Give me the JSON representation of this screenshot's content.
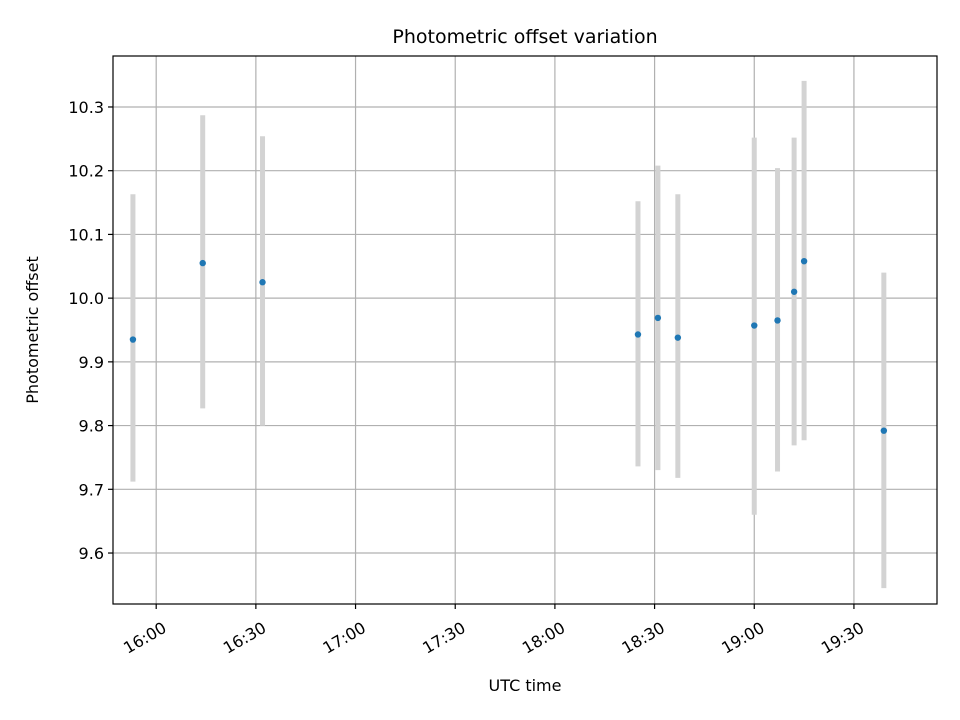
{
  "chart_data": {
    "type": "scatter",
    "title": "Photometric offset variation",
    "xlabel": "UTC time",
    "ylabel": "Photometric offset",
    "x_ticks": [
      "16:00",
      "16:30",
      "17:00",
      "17:30",
      "18:00",
      "18:30",
      "19:00",
      "19:30"
    ],
    "y_ticks": [
      "9.6",
      "9.7",
      "9.8",
      "9.9",
      "10.0",
      "10.1",
      "10.2",
      "10.3"
    ],
    "xlim": [
      "15:47",
      "19:55"
    ],
    "ylim": [
      9.52,
      10.38
    ],
    "grid": true,
    "colors": {
      "point": "#1f77b4",
      "errorbar": "#d3d3d3",
      "grid": "#b0b0b0"
    },
    "series": [
      {
        "points": [
          {
            "x": "15:53",
            "y": 9.935,
            "ylow": 9.712,
            "yhigh": 10.163
          },
          {
            "x": "16:14",
            "y": 10.055,
            "ylow": 9.827,
            "yhigh": 10.287
          },
          {
            "x": "16:32",
            "y": 10.025,
            "ylow": 9.8,
            "yhigh": 10.254
          },
          {
            "x": "18:25",
            "y": 9.943,
            "ylow": 9.736,
            "yhigh": 10.152
          },
          {
            "x": "18:31",
            "y": 9.969,
            "ylow": 9.73,
            "yhigh": 10.208
          },
          {
            "x": "18:37",
            "y": 9.938,
            "ylow": 9.718,
            "yhigh": 10.163
          },
          {
            "x": "19:00",
            "y": 9.957,
            "ylow": 9.66,
            "yhigh": 10.252
          },
          {
            "x": "19:07",
            "y": 9.965,
            "ylow": 9.728,
            "yhigh": 10.204
          },
          {
            "x": "19:12",
            "y": 10.01,
            "ylow": 9.769,
            "yhigh": 10.252
          },
          {
            "x": "19:15",
            "y": 10.058,
            "ylow": 9.777,
            "yhigh": 10.341
          },
          {
            "x": "19:39",
            "y": 9.792,
            "ylow": 9.545,
            "yhigh": 10.04
          }
        ]
      }
    ]
  }
}
